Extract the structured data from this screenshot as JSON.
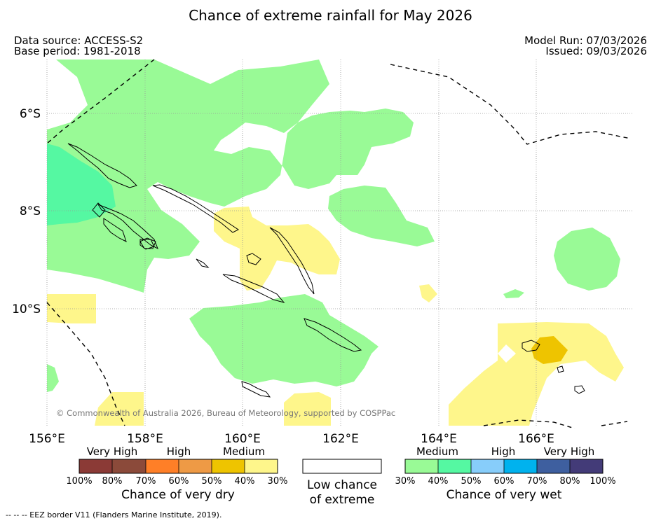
{
  "title": "Chance of extreme rainfall for May 2026",
  "meta": {
    "source": "Data source: ACCESS-S2",
    "base_period": "Base period: 1981-2018",
    "model_run": "Model Run: 07/03/2026",
    "issued": "Issued: 09/03/2026"
  },
  "map": {
    "lat_labels": [
      "6°S",
      "8°S",
      "10°S"
    ],
    "lon_labels": [
      "156°E",
      "158°E",
      "160°E",
      "162°E",
      "164°E",
      "166°E"
    ],
    "copyright": "© Commonwealth of Australia 2026, Bureau of Meteorology, supported by COSPPac"
  },
  "colorbar_dry": {
    "categories": [
      "Very High",
      "High",
      "Medium"
    ],
    "ticks": [
      "100%",
      "80%",
      "70%",
      "60%",
      "50%",
      "40%",
      "30%"
    ],
    "colors": [
      "#8b3a36",
      "#8b4a3a",
      "#ff7f27",
      "#ee9a45",
      "#eec400",
      "#fef68b"
    ],
    "caption": "Chance of very dry"
  },
  "colorbar_low": {
    "caption_line1": "Low chance",
    "caption_line2": "of extreme"
  },
  "colorbar_wet": {
    "categories": [
      "Medium",
      "High",
      "Very High"
    ],
    "ticks": [
      "30%",
      "40%",
      "50%",
      "60%",
      "70%",
      "80%",
      "100%"
    ],
    "colors": [
      "#99fa96",
      "#55f8a2",
      "#87cdfa",
      "#00b2ee",
      "#3e5f9f",
      "#433b78"
    ],
    "caption": "Chance of very wet"
  },
  "eez_note": "--  --  -- EEZ border V11 (Flanders Marine Institute, 2019)."
}
